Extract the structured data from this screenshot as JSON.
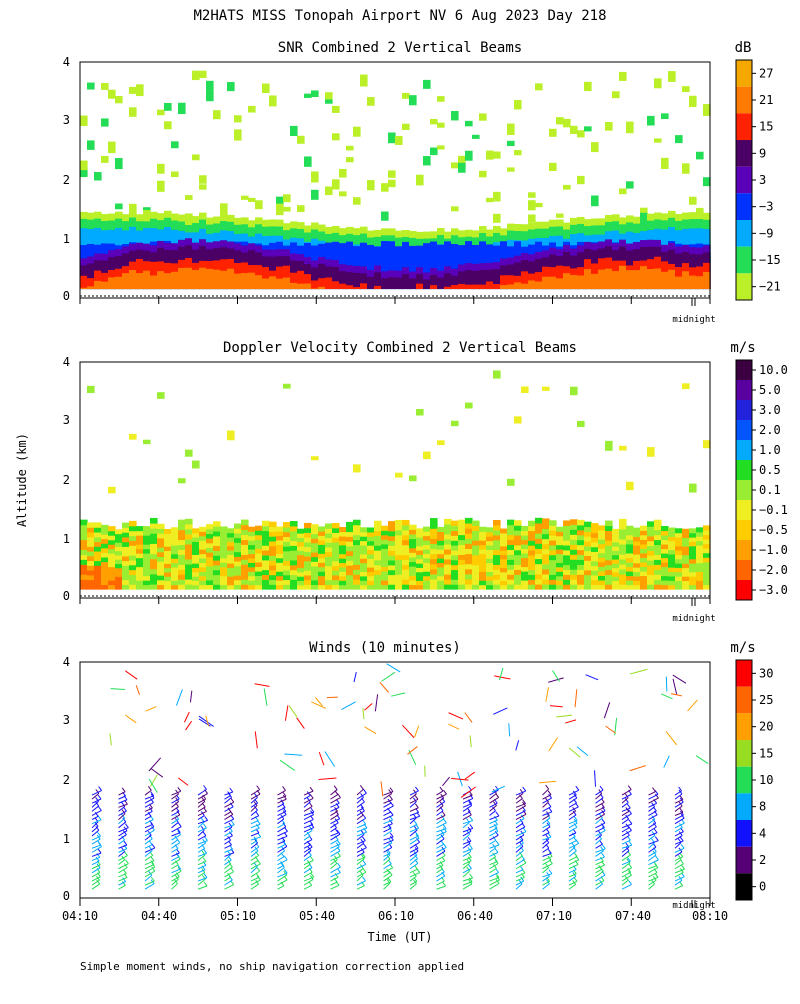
{
  "figure": {
    "title": "M2HATS MISS Tonopah Airport NV   6 Aug 2023 Day 218",
    "ylabel": "Altitude (km)",
    "xlabel": "Time (UT)",
    "footnote": "Simple moment winds, no ship navigation correction applied",
    "midnight_label": "midnight"
  },
  "chart_data": [
    {
      "type": "heatmap",
      "title": "SNR Combined 2 Vertical Beams",
      "ylim": [
        0,
        4
      ],
      "yticks": [
        "0",
        "1",
        "2",
        "3",
        "4"
      ],
      "x_time_range": [
        "04:10",
        "08:10"
      ],
      "colorbar": {
        "unit": "dB",
        "ticks": [
          "27",
          "21",
          "15",
          "9",
          "3",
          "−3",
          "−9",
          "−15",
          "−21"
        ],
        "colors": [
          "#f5a800",
          "#ff7a00",
          "#ff2200",
          "#4a0064",
          "#5a00b8",
          "#0033ff",
          "#00aaff",
          "#22dd55",
          "#bbf028"
        ]
      }
    },
    {
      "type": "heatmap",
      "title": "Doppler Velocity Combined 2 Vertical Beams",
      "ylim": [
        0,
        4
      ],
      "yticks": [
        "0",
        "1",
        "2",
        "3",
        "4"
      ],
      "x_time_range": [
        "04:10",
        "08:10"
      ],
      "colorbar": {
        "unit": "m/s",
        "ticks": [
          "10.0",
          "5.0",
          "3.0",
          "2.0",
          "1.0",
          "0.5",
          "0.1",
          "−0.1",
          "−0.5",
          "−1.0",
          "−2.0",
          "−3.0"
        ],
        "colors": [
          "#3a0040",
          "#5a00a0",
          "#2222dd",
          "#0055ff",
          "#00aaff",
          "#22dd22",
          "#99ee33",
          "#eeee22",
          "#ffcc00",
          "#ffa000",
          "#ff6600",
          "#ff0000"
        ]
      }
    },
    {
      "type": "scatter",
      "title": "Winds (10 minutes)",
      "ylim": [
        0,
        4
      ],
      "yticks": [
        "0",
        "1",
        "2",
        "3",
        "4"
      ],
      "x": [
        "04:10",
        "04:40",
        "05:10",
        "05:40",
        "06:10",
        "06:40",
        "07:10",
        "07:40",
        "08:10"
      ],
      "colorbar": {
        "unit": "m/s",
        "ticks": [
          "30",
          "25",
          "20",
          "15",
          "10",
          "8",
          "4",
          "2",
          "0"
        ],
        "colors": [
          "#ff0000",
          "#ff6600",
          "#ffa000",
          "#99dd22",
          "#22dd55",
          "#00aaff",
          "#1111ff",
          "#550077",
          "#000000"
        ]
      }
    }
  ]
}
